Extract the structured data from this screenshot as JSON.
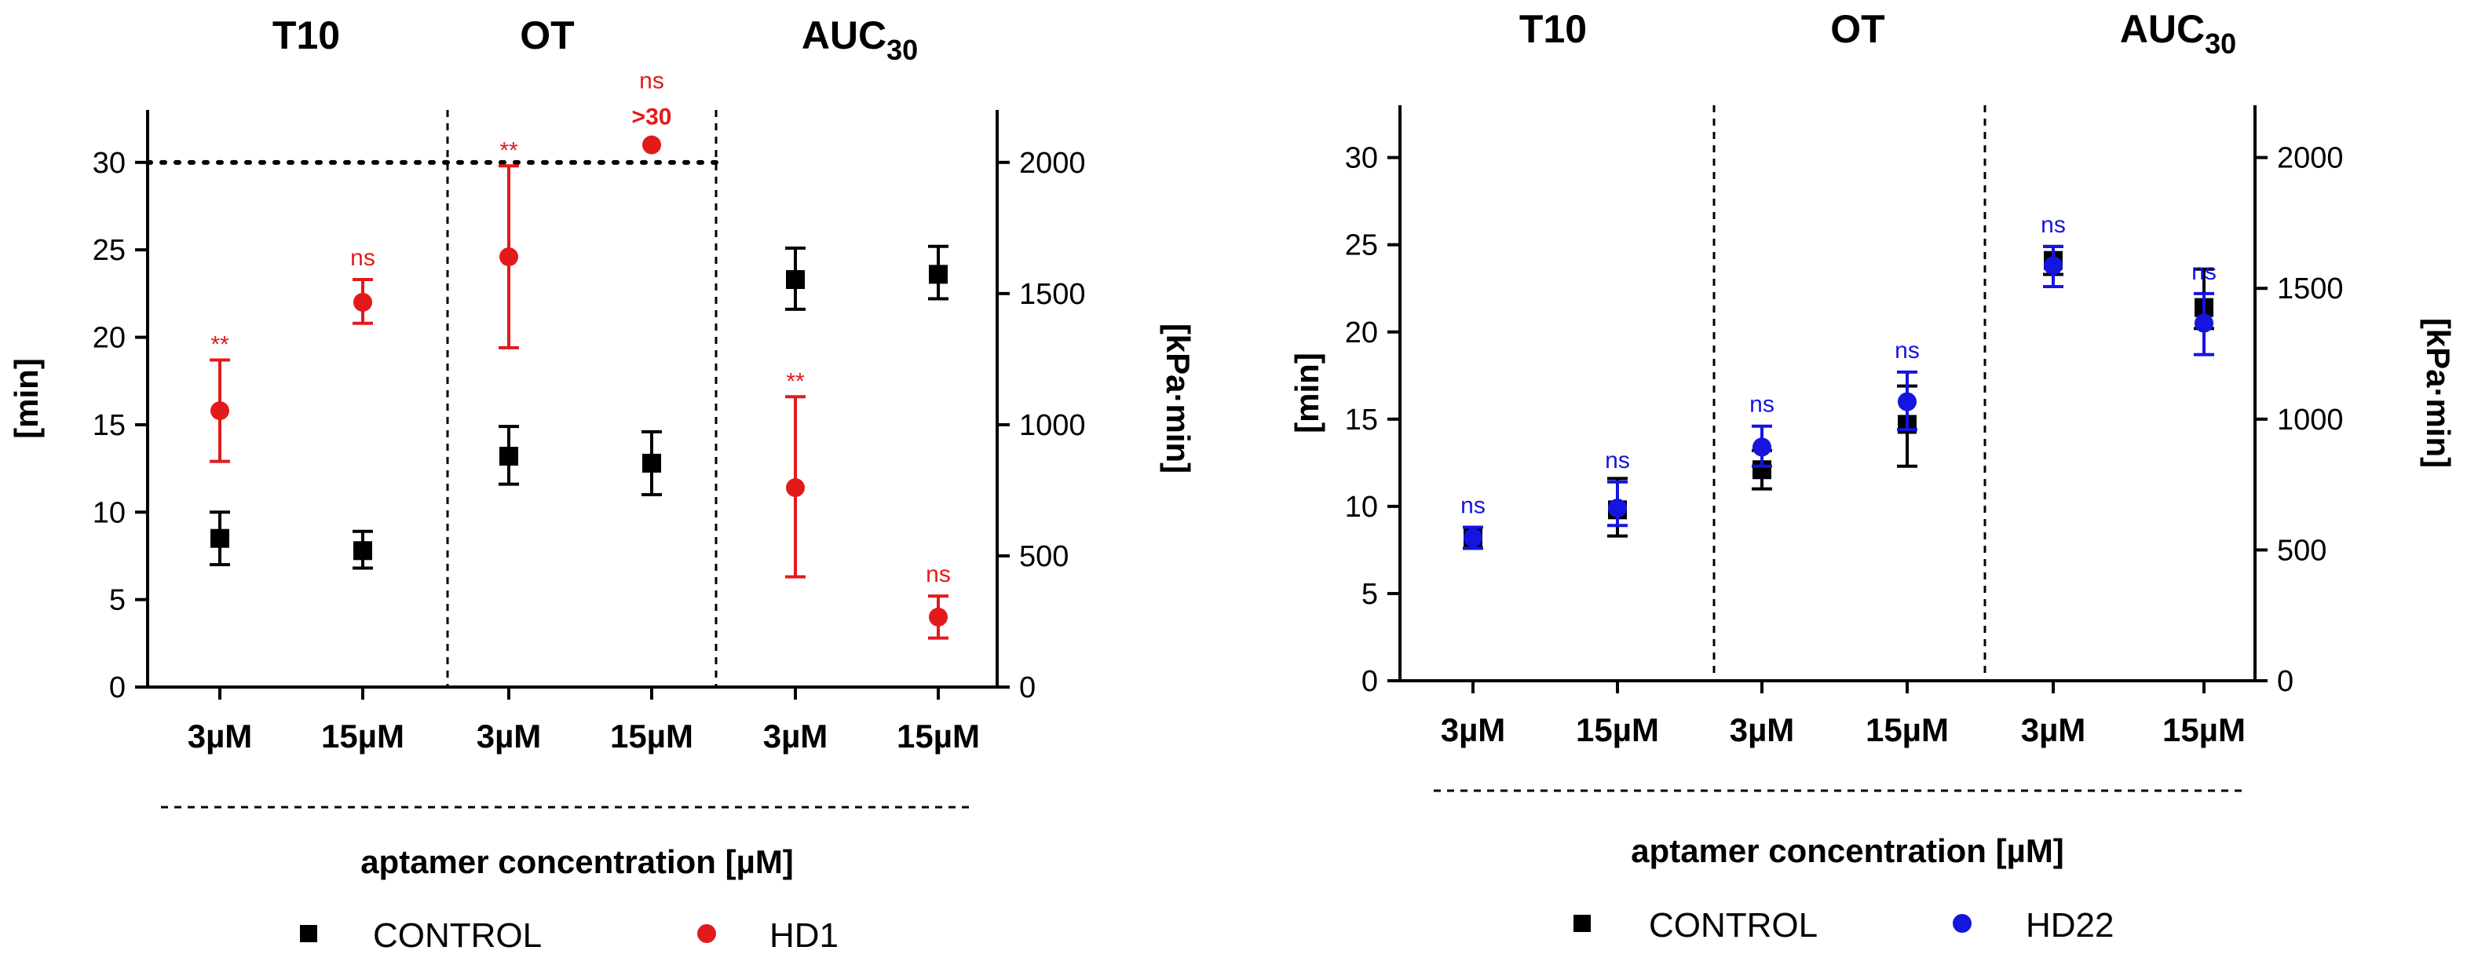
{
  "chart_data": [
    {
      "type": "scatter",
      "panel": "left",
      "groups": [
        "T10",
        "OT",
        "AUC30"
      ],
      "group_labels": [
        {
          "text": "T10",
          "sub": ""
        },
        {
          "text": "OT",
          "sub": ""
        },
        {
          "text": "AUC",
          "sub": "30"
        }
      ],
      "categories": [
        "3µM",
        "15µM",
        "3µM",
        "15µM",
        "3µM",
        "15µM"
      ],
      "xlabel": "aptamer concentration [µM]",
      "ylabel_left": "[min]",
      "ylabel_right": "[kPa·min]",
      "ylim_left": [
        0,
        33
      ],
      "yticks_left": [
        "0",
        "5",
        "10",
        "15",
        "20",
        "25",
        "30"
      ],
      "ylim_right": [
        0,
        2200
      ],
      "yticks_right": [
        "0",
        "500",
        "1000",
        "1500",
        "2000"
      ],
      "reference_line_y": 30,
      "series": [
        {
          "name": "CONTROL",
          "color": "#000000",
          "marker": "square",
          "values": [
            8.5,
            7.8,
            13.2,
            12.8,
            23.3,
            23.6
          ],
          "err_low": [
            7.0,
            6.8,
            11.6,
            11.0,
            21.6,
            22.2
          ],
          "err_high": [
            10.0,
            8.9,
            14.9,
            14.6,
            25.1,
            25.2
          ],
          "annotations": [
            "",
            "",
            "",
            "",
            "",
            ""
          ]
        },
        {
          "name": "HD1",
          "color": "#e31a1c",
          "marker": "circle",
          "values": [
            15.8,
            22.0,
            24.6,
            31.0,
            11.4,
            4.0
          ],
          "err_low": [
            12.9,
            20.8,
            19.4,
            31.0,
            6.3,
            2.8
          ],
          "err_high": [
            18.7,
            23.3,
            29.8,
            31.0,
            16.6,
            5.2
          ],
          "annotations": [
            "**",
            "ns",
            "**",
            "ns",
            "**",
            "ns"
          ],
          "extra_labels": [
            "",
            "",
            "",
            ">30",
            "",
            ""
          ]
        }
      ]
    },
    {
      "type": "scatter",
      "panel": "right",
      "groups": [
        "T10",
        "OT",
        "AUC30"
      ],
      "group_labels": [
        {
          "text": "T10",
          "sub": ""
        },
        {
          "text": "OT",
          "sub": ""
        },
        {
          "text": "AUC",
          "sub": "30"
        }
      ],
      "categories": [
        "3µM",
        "15µM",
        "3µM",
        "15µM",
        "3µM",
        "15µM"
      ],
      "xlabel": "aptamer concentration [µM]",
      "ylabel_left": "[min]",
      "ylabel_right": "[kPa·min]",
      "ylim_left": [
        0,
        33
      ],
      "yticks_left": [
        "0",
        "5",
        "10",
        "15",
        "20",
        "25",
        "30"
      ],
      "ylim_right": [
        0,
        2200
      ],
      "yticks_right": [
        "0",
        "500",
        "1000",
        "1500",
        "2000"
      ],
      "series": [
        {
          "name": "CONTROL",
          "color": "#000000",
          "marker": "square",
          "values": [
            8.2,
            9.8,
            12.1,
            14.7,
            24.1,
            21.4
          ],
          "err_low": [
            7.6,
            8.3,
            11.0,
            12.3,
            23.3,
            20.2
          ],
          "err_high": [
            8.8,
            11.6,
            13.2,
            16.9,
            24.9,
            23.6
          ],
          "annotations": [
            "",
            "",
            "",
            "",
            "",
            ""
          ]
        },
        {
          "name": "HD22",
          "color": "#1515e0",
          "marker": "circle",
          "values": [
            8.2,
            9.9,
            13.4,
            16.0,
            23.8,
            20.5
          ],
          "err_low": [
            7.6,
            8.9,
            12.3,
            14.4,
            22.6,
            18.7
          ],
          "err_high": [
            8.8,
            11.4,
            14.6,
            17.7,
            24.9,
            22.2
          ],
          "annotations": [
            "ns",
            "ns",
            "ns",
            "ns",
            "ns",
            "ns"
          ],
          "extra_labels": [
            "",
            "",
            "",
            "",
            "",
            ""
          ]
        }
      ]
    }
  ]
}
